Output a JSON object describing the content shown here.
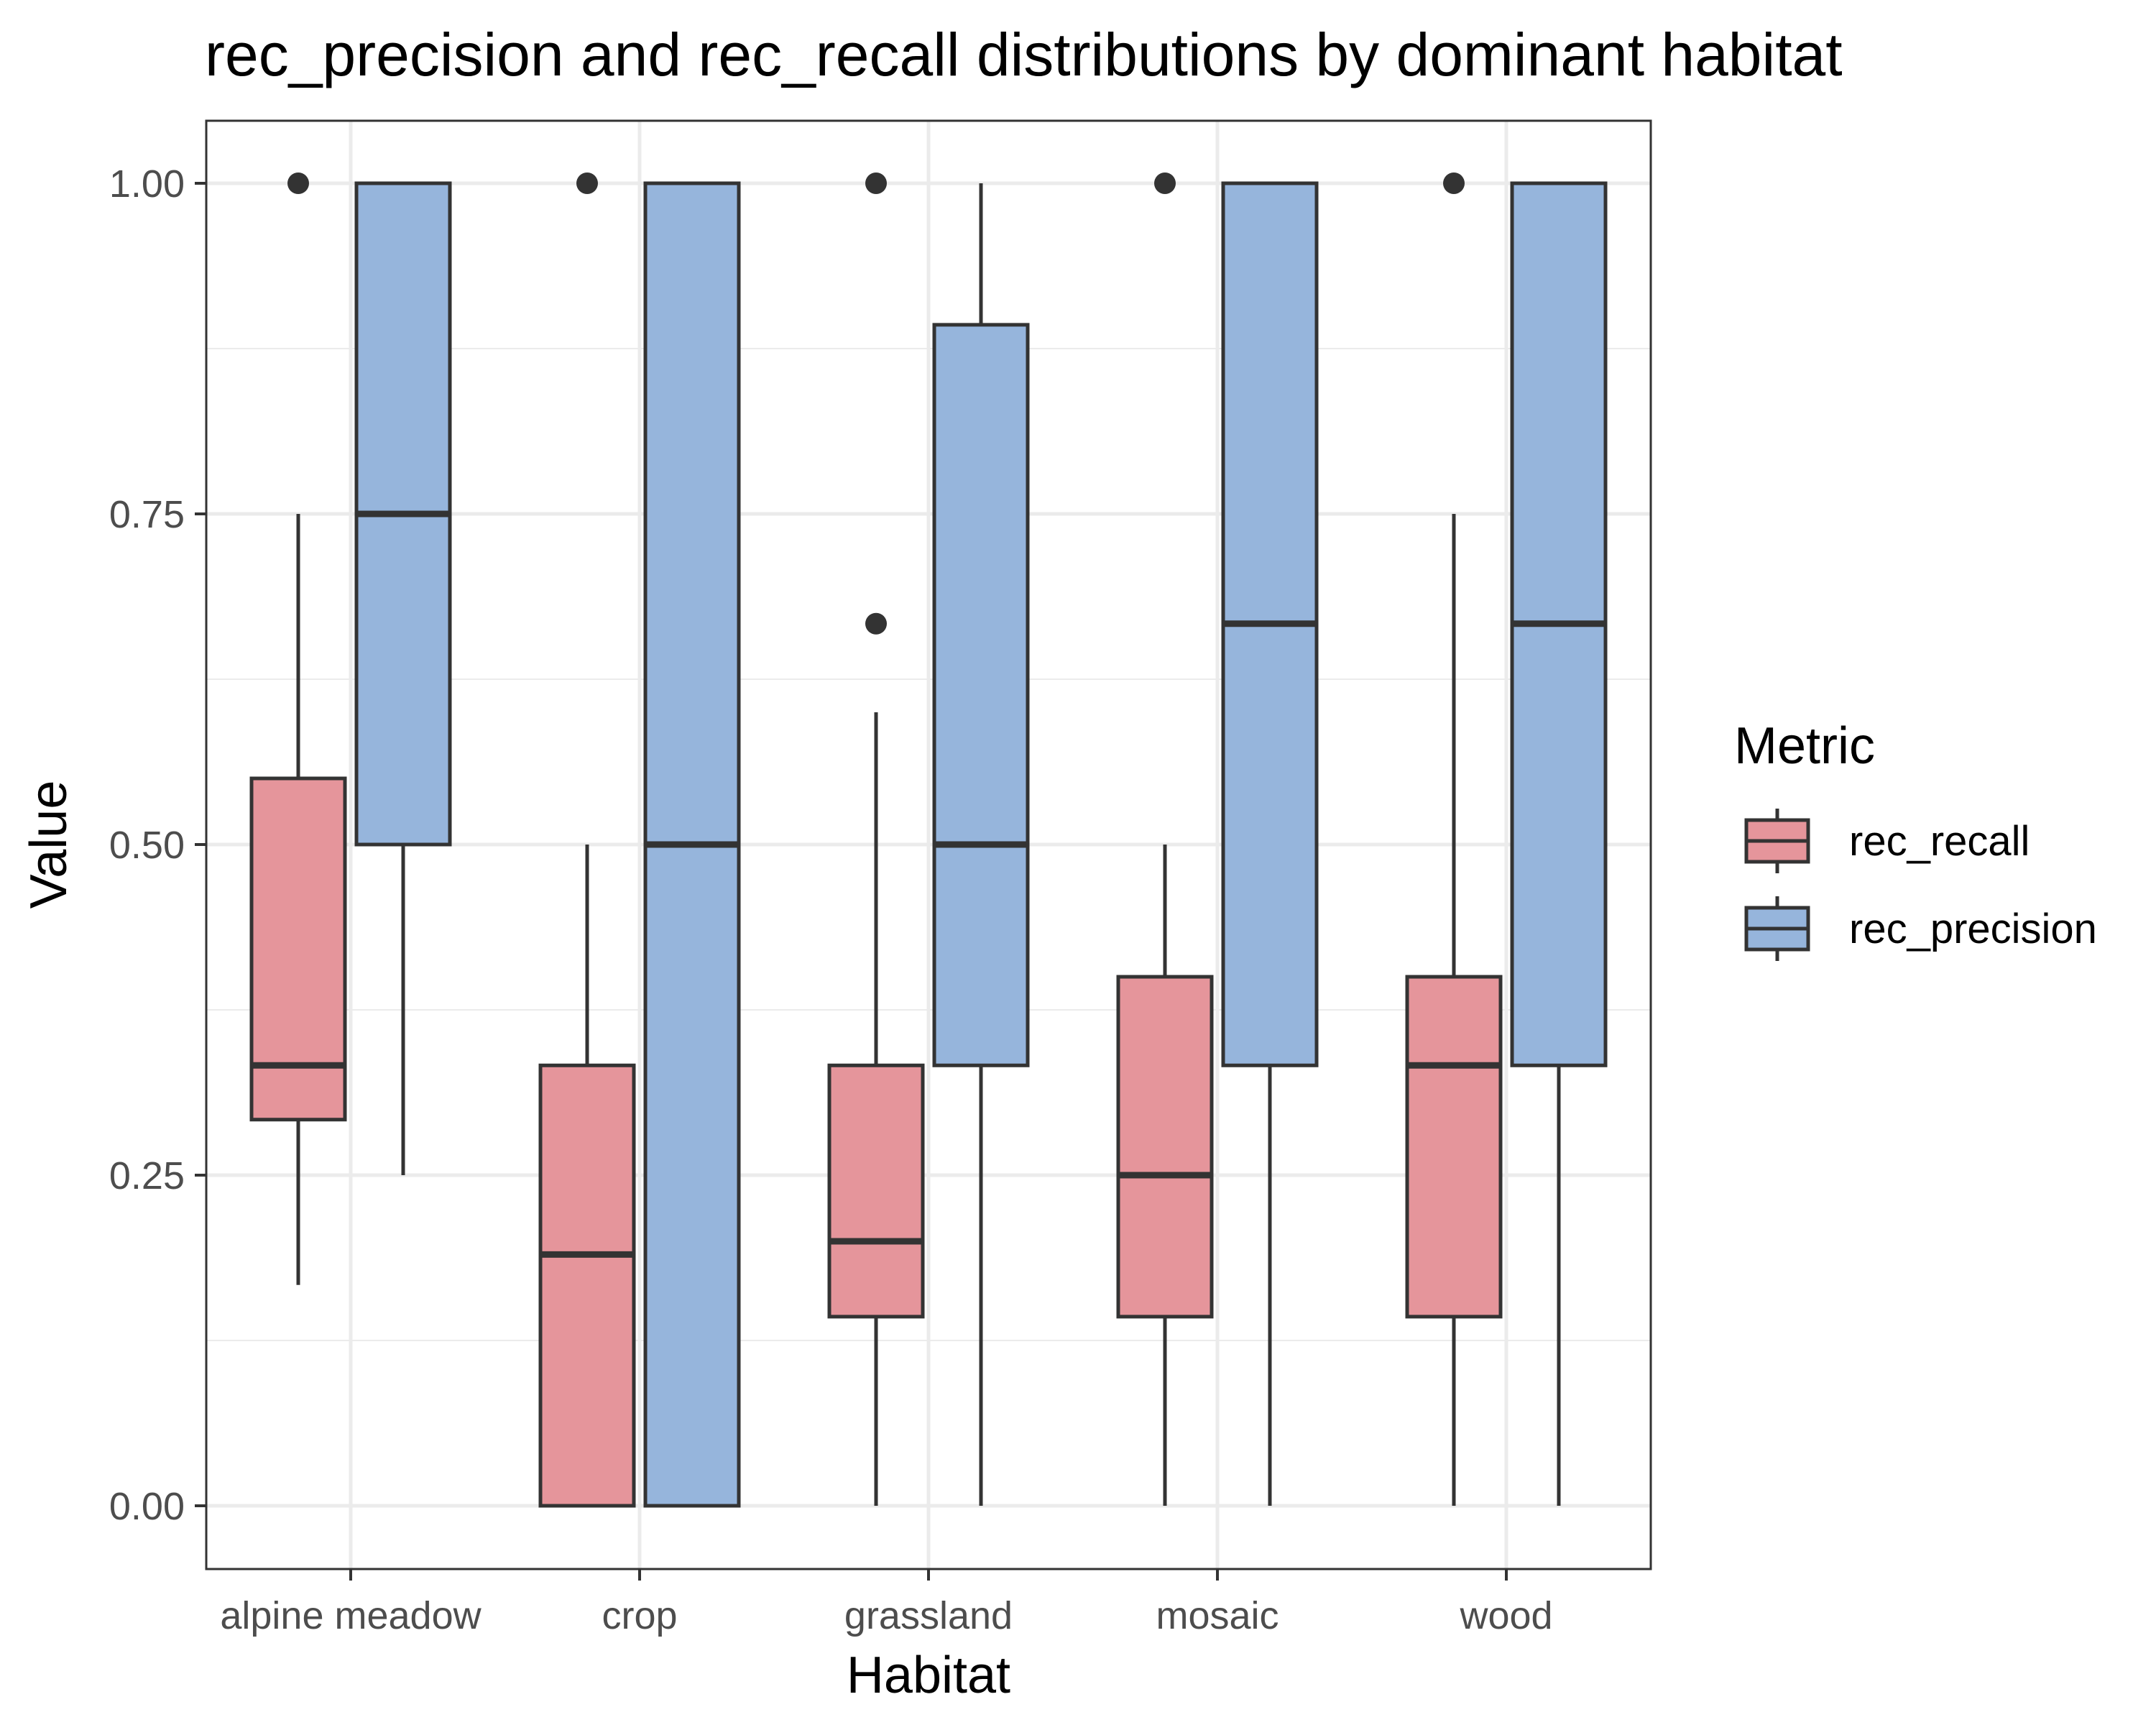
{
  "chart_data": {
    "type": "boxplot",
    "title": "rec_precision and rec_recall distributions by dominant habitat",
    "xlabel": "Habitat",
    "ylabel": "Value",
    "ylim": [
      -0.098,
      1.048
    ],
    "yticks": [
      0,
      0.25,
      0.5,
      0.75,
      1
    ],
    "ytick_labels": [
      "0.00",
      "0.25",
      "0.50",
      "0.75",
      "1.00"
    ],
    "grid": true,
    "legend_position": "right",
    "legend_title": "Metric",
    "categories": [
      "alpine meadow",
      "crop",
      "grassland",
      "mosaic",
      "wood"
    ],
    "series": [
      {
        "name": "rec_recall",
        "color": "#e5959b",
        "boxes": [
          {
            "whisker_low": 0.167,
            "q1": 0.292,
            "median": 0.333,
            "q3": 0.55,
            "whisker_high": 0.75,
            "outliers": [
              1.0
            ]
          },
          {
            "whisker_low": 0.0,
            "q1": 0.0,
            "median": 0.19,
            "q3": 0.333,
            "whisker_high": 0.5,
            "outliers": [
              1.0
            ]
          },
          {
            "whisker_low": 0.0,
            "q1": 0.143,
            "median": 0.2,
            "q3": 0.333,
            "whisker_high": 0.6,
            "outliers": [
              0.667,
              1.0
            ]
          },
          {
            "whisker_low": 0.0,
            "q1": 0.143,
            "median": 0.25,
            "q3": 0.4,
            "whisker_high": 0.5,
            "outliers": [
              1.0
            ]
          },
          {
            "whisker_low": 0.0,
            "q1": 0.143,
            "median": 0.333,
            "q3": 0.4,
            "whisker_high": 0.75,
            "outliers": [
              1.0
            ]
          }
        ]
      },
      {
        "name": "rec_precision",
        "color": "#96b5dc",
        "boxes": [
          {
            "whisker_low": 0.25,
            "q1": 0.5,
            "median": 0.75,
            "q3": 1.0,
            "whisker_high": 1.0,
            "outliers": []
          },
          {
            "whisker_low": 0.0,
            "q1": 0.0,
            "median": 0.5,
            "q3": 1.0,
            "whisker_high": 1.0,
            "outliers": []
          },
          {
            "whisker_low": 0.0,
            "q1": 0.333,
            "median": 0.5,
            "q3": 0.893,
            "whisker_high": 1.0,
            "outliers": []
          },
          {
            "whisker_low": 0.0,
            "q1": 0.333,
            "median": 0.667,
            "q3": 1.0,
            "whisker_high": 1.0,
            "outliers": []
          },
          {
            "whisker_low": 0.0,
            "q1": 0.333,
            "median": 0.667,
            "q3": 1.0,
            "whisker_high": 1.0,
            "outliers": []
          }
        ]
      }
    ]
  }
}
